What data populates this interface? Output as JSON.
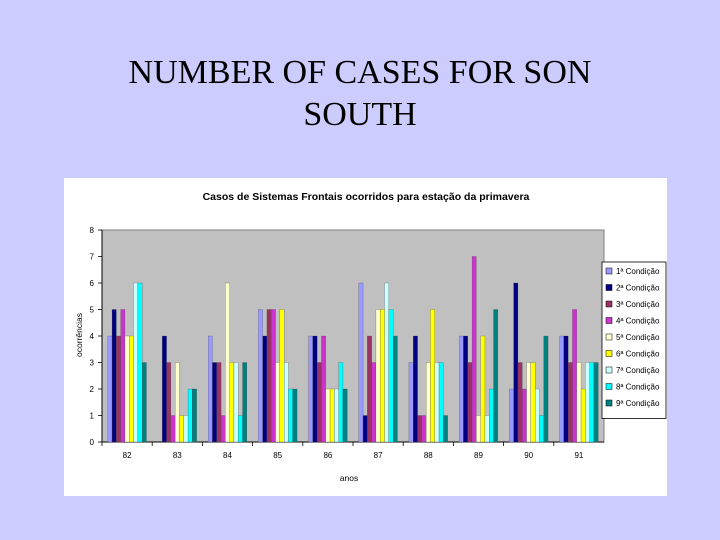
{
  "slide": {
    "title_line1": "NUMBER OF CASES FOR  SON",
    "title_line2": "SOUTH"
  },
  "chart_data": {
    "type": "bar",
    "title": "Casos de Sistemas Frontais ocorridos para estação da primavera",
    "xlabel": "anos",
    "ylabel": "ocorrências",
    "ylim": [
      0,
      8
    ],
    "yticks": [
      "0",
      "1",
      "2",
      "3",
      "4",
      "5",
      "6",
      "7",
      "8"
    ],
    "grid": false,
    "legend_position": "right",
    "categories": [
      "82",
      "83",
      "84",
      "85",
      "86",
      "87",
      "88",
      "89",
      "90",
      "91"
    ],
    "series": [
      {
        "name": "1ª Condição",
        "color": "#9999ff",
        "values": [
          4,
          0,
          4,
          5,
          4,
          6,
          3,
          4,
          2,
          4
        ]
      },
      {
        "name": "2ª Condição",
        "color": "#000080",
        "values": [
          5,
          4,
          3,
          4,
          4,
          1,
          4,
          4,
          6,
          4
        ]
      },
      {
        "name": "3ª Condição",
        "color": "#993366",
        "values": [
          4,
          3,
          3,
          5,
          3,
          4,
          1,
          3,
          3,
          3
        ]
      },
      {
        "name": "4ª Condição",
        "color": "#cc33cc",
        "values": [
          5,
          1,
          1,
          5,
          4,
          3,
          1,
          7,
          2,
          5
        ]
      },
      {
        "name": "5ª Condição",
        "color": "#ffffcc",
        "values": [
          4,
          3,
          6,
          3,
          2,
          5,
          3,
          1,
          3,
          3
        ]
      },
      {
        "name": "6ª Condição",
        "color": "#ffff00",
        "values": [
          4,
          1,
          3,
          5,
          2,
          5,
          5,
          4,
          3,
          2
        ]
      },
      {
        "name": "7ª Condição",
        "color": "#ccffff",
        "values": [
          6,
          1,
          3,
          3,
          2,
          6,
          3,
          1,
          2,
          3
        ]
      },
      {
        "name": "8ª Condição",
        "color": "#00ffff",
        "values": [
          6,
          2,
          1,
          2,
          3,
          5,
          3,
          2,
          1,
          3
        ]
      },
      {
        "name": "9ª Condição",
        "color": "#008080",
        "values": [
          3,
          2,
          3,
          2,
          2,
          4,
          1,
          5,
          4,
          3
        ]
      }
    ]
  }
}
